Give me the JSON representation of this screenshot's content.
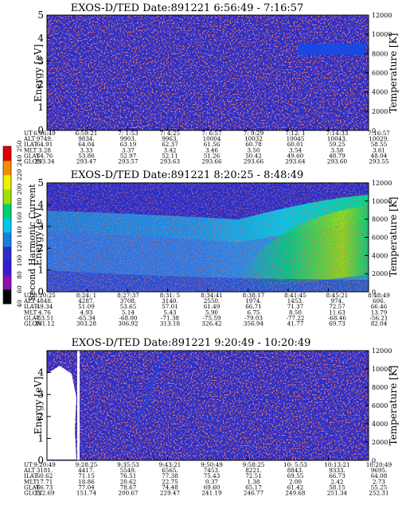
{
  "colors": {
    "background_spectrogram": "#2b2fc8",
    "noise": "#a12a2a",
    "colorbar": [
      "#000000",
      "#8a10b0",
      "#3a1ad0",
      "#2b2fc8",
      "#1a7fe0",
      "#00c8e8",
      "#00d070",
      "#a0e000",
      "#f0f000",
      "#f09000",
      "#e00000"
    ]
  },
  "colorbar": {
    "label": "Second Harmonic Current",
    "ticks": [
      "40",
      "60",
      "80",
      "100",
      "120",
      "140",
      "160",
      "180",
      "200",
      "220",
      "240",
      "250"
    ]
  },
  "panels": [
    {
      "id": "p1",
      "title": "EXOS-D/TED   Date:891221   6:56:49 - 7:16:57",
      "ylabel": "Energy [eV]",
      "y2label": "Temperature [K]",
      "yticks": [
        "0",
        "1",
        "2",
        "3",
        "4",
        "5"
      ],
      "y2ticks": [
        "0",
        "2000",
        "4000",
        "6000",
        "8000",
        "10000",
        "12000"
      ],
      "rows": [
        {
          "label": "UT",
          "values": [
            "6:56:49",
            "6:59:21",
            "7: 1:53",
            "7: 4:25",
            "7: 6:57",
            "7: 9:29",
            "7:12: 1",
            "7:14:33",
            "7:16:57"
          ]
        },
        {
          "label": "ALT",
          "values": [
            "9749.",
            "9834.",
            "9903.",
            "9963.",
            "10004",
            "10032",
            "10045",
            "10043.",
            "10029."
          ]
        },
        {
          "label": "ILAT",
          "values": [
            "64.91",
            "64.04",
            "63.19",
            "62.37",
            "61.56",
            "60.78",
            "60.01",
            "59.25",
            "58.55"
          ]
        },
        {
          "label": "MLT",
          "values": [
            "3.28",
            "3.33",
            "3.37",
            "3.42",
            "3.46",
            "3.50",
            "3.54",
            "3.58",
            "3.61"
          ]
        },
        {
          "label": "GLAT",
          "values": [
            "54.76",
            "53.86",
            "52.97",
            "52.11",
            "51.26",
            "50.42",
            "49.60",
            "48.79",
            "48.04"
          ]
        },
        {
          "label": "GLON",
          "values": [
            "293.34",
            "293.47",
            "293.57",
            "293.63",
            "293.66",
            "293.66",
            "293.64",
            "293.60",
            "293.55"
          ]
        }
      ]
    },
    {
      "id": "p2",
      "title": "EXOS-D/TED   Date:891221   8:20:25 - 8:48:49",
      "ylabel": "Energy [eV]",
      "y2label": "Temperature [K]",
      "yticks": [
        "0",
        "1",
        "2",
        "3",
        "4",
        "5"
      ],
      "y2ticks": [
        "0",
        "2000",
        "4000",
        "6000",
        "8000",
        "10000",
        "12000"
      ],
      "rows": [
        {
          "label": "UT",
          "values": [
            "8:20:25",
            "8:24: 1",
            "8:27:37",
            "8:31: 5",
            "8:34:41",
            "8:38:17",
            "8:41:45",
            "8:45:21",
            "8:48:49"
          ]
        },
        {
          "label": "ALT",
          "values": [
            "4848.",
            "4287.",
            "3708.",
            "3140.",
            "2550.",
            "1974.",
            "1453.",
            "974.",
            "606."
          ]
        },
        {
          "label": "ILAT",
          "values": [
            "49.34",
            "51.09",
            "53.65",
            "57.01",
            "61.49",
            "66.71",
            "71.37",
            "72.57",
            "66.46"
          ]
        },
        {
          "label": "MLT",
          "values": [
            "4.76",
            "4.93",
            "5.14",
            "5.43",
            "5.90",
            "6.75",
            "8.50",
            "11.63",
            "13.79"
          ]
        },
        {
          "label": "GLAT",
          "values": [
            "-63.51",
            "-65.34",
            "-68.00",
            "-71.38",
            "-75.59",
            "-79.03",
            "-77.22",
            "-68.46",
            "-56.21"
          ]
        },
        {
          "label": "GLON",
          "values": [
            "301.12",
            "303.28",
            "306.92",
            "313.18",
            "326.42",
            "356.94",
            "41.77",
            "69.73",
            "82.04"
          ]
        }
      ]
    },
    {
      "id": "p3",
      "title": "EXOS-D/TED   Date:891221   9:20:49 - 10:20:49",
      "ylabel": "Energy [eV]",
      "y2label": "Temperature [K]",
      "yticks": [
        "0",
        "1",
        "2",
        "3",
        "4"
      ],
      "y2ticks": [
        "0",
        "2000",
        "4000",
        "6000",
        "8000",
        "10000",
        "12000"
      ],
      "rows": [
        {
          "label": "UT",
          "values": [
            "9:20:49",
            "9:28:25",
            "9:35:53",
            "9:43:21",
            "9:50:49",
            "9:58:25",
            "10: 5:53",
            "10:13:21",
            "10:20:49"
          ]
        },
        {
          "label": "ALT",
          "values": [
            "3181.",
            "4417.",
            "5549.",
            "6565.",
            "7453.",
            "8221.",
            "8843.",
            "9333.",
            "9695."
          ]
        },
        {
          "label": "ILAT",
          "values": [
            "60.62",
            "71.15",
            "76.51",
            "77.38",
            "75.43",
            "72.51",
            "69.55",
            "66.73",
            "64.08"
          ]
        },
        {
          "label": "MLT",
          "values": [
            "17.71",
            "18.86",
            "20.62",
            "22.75",
            "0.37",
            "1.38",
            "2.00",
            "2.42",
            "2.73"
          ]
        },
        {
          "label": "GLAT",
          "values": [
            "66.73",
            "77.04",
            "78.67",
            "74.48",
            "69.60",
            "65.17",
            "61.42",
            "58.15",
            "55.25"
          ]
        },
        {
          "label": "GLON",
          "values": [
            "122.69",
            "151.74",
            "200.67",
            "229.47",
            "241.19",
            "246.77",
            "249.68",
            "251.34",
            "252.31"
          ]
        }
      ]
    }
  ]
}
